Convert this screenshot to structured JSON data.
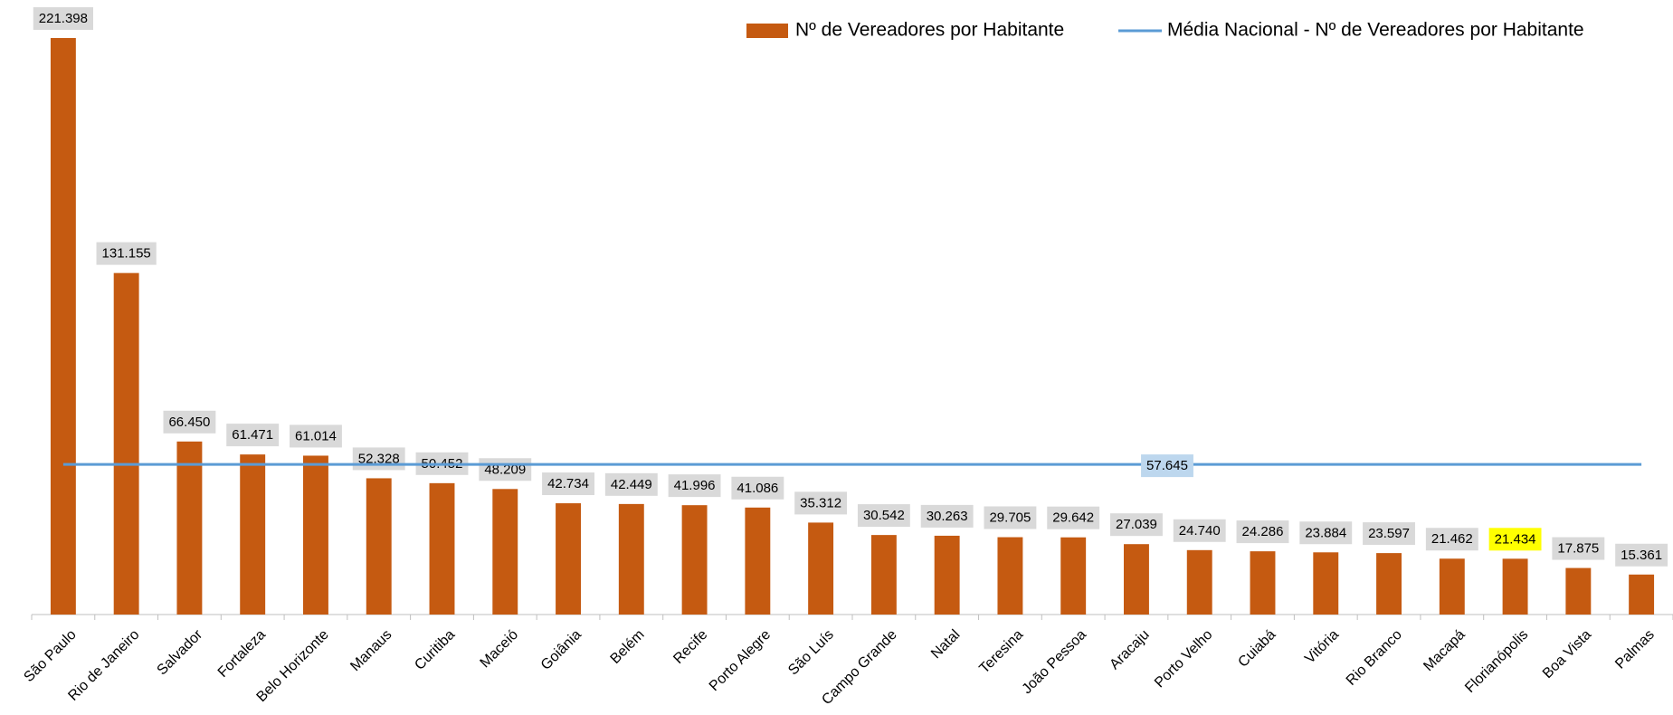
{
  "chart_data": {
    "type": "bar",
    "categories": [
      "São Paulo",
      "Rio de Janeiro",
      "Salvador",
      "Fortaleza",
      "Belo Horizonte",
      "Manaus",
      "Curitiba",
      "Maceió",
      "Goiânia",
      "Belém",
      "Recife",
      "Porto Alegre",
      "São Luís",
      "Campo Grande",
      "Natal",
      "Teresina",
      "João Pessoa",
      "Aracaju",
      "Porto Velho",
      "Cuiabá",
      "Vitória",
      "Rio Branco",
      "Macapá",
      "Florianópolis",
      "Boa Vista",
      "Palmas"
    ],
    "series": [
      {
        "name": "Nº de Vereadores por Habitante",
        "color": "#c55a11",
        "values": [
          221398,
          131155,
          66450,
          61471,
          61014,
          52328,
          50452,
          48209,
          42734,
          42449,
          41996,
          41086,
          35312,
          30542,
          30263,
          29705,
          29642,
          27039,
          24740,
          24286,
          23884,
          23597,
          21462,
          21434,
          17875,
          15361
        ],
        "value_labels": [
          "221.398",
          "131.155",
          "66.450",
          "61.471",
          "61.014",
          "52.328",
          "50.452",
          "48.209",
          "42.734",
          "42.449",
          "41.996",
          "41.086",
          "35.312",
          "30.542",
          "30.263",
          "29.705",
          "29.642",
          "27.039",
          "24.740",
          "24.286",
          "23.884",
          "23.597",
          "21.462",
          "21.434",
          "17.875",
          "15.361"
        ]
      },
      {
        "name": "Média Nacional - Nº de Vereadores por Habitante",
        "color": "#5b9bd5",
        "type": "line",
        "value": 57645,
        "value_label": "57.645"
      }
    ],
    "ylim": [
      0,
      236000
    ],
    "highlight_index": 23,
    "highlight_color": "#ffff00",
    "label_background": "#d9d9d9",
    "mean_label_background": "#bdd7ee"
  }
}
